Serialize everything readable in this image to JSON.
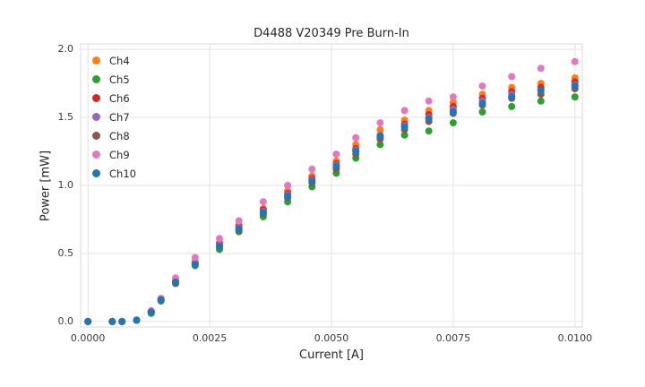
{
  "chart_data": {
    "type": "scatter",
    "title": "D4488 V20349 Pre Burn-In",
    "xlabel": "Current [A]",
    "ylabel": "Power [mW]",
    "xlim": [
      -0.00015,
      0.01015
    ],
    "ylim": [
      -0.04,
      2.04
    ],
    "grid": true,
    "legend_position": "upper-left",
    "xticks": {
      "values": [
        0.0,
        0.0025,
        0.005,
        0.0075,
        0.01
      ],
      "labels": [
        "0.0000",
        "0.0025",
        "0.0050",
        "0.0075",
        "0.0100"
      ]
    },
    "yticks": {
      "values": [
        0.0,
        0.5,
        1.0,
        1.5,
        2.0
      ],
      "labels": [
        "0.0",
        "0.5",
        "1.0",
        "1.5",
        "2.0"
      ]
    },
    "x": [
      0.0,
      0.0005,
      0.0007,
      0.001,
      0.0013,
      0.0015,
      0.0018,
      0.0022,
      0.0027,
      0.0031,
      0.0036,
      0.0041,
      0.0046,
      0.0051,
      0.0055,
      0.006,
      0.0065,
      0.007,
      0.0075,
      0.0081,
      0.0087,
      0.0093,
      0.01
    ],
    "series": [
      {
        "name": "Ch4",
        "color": "#ff7f0e",
        "values": [
          0.0,
          0.0,
          0.0,
          0.01,
          0.07,
          0.17,
          0.3,
          0.44,
          0.58,
          0.71,
          0.83,
          0.96,
          1.07,
          1.18,
          1.3,
          1.41,
          1.48,
          1.55,
          1.61,
          1.67,
          1.72,
          1.75,
          1.79
        ]
      },
      {
        "name": "Ch5",
        "color": "#2ca02c",
        "values": [
          0.0,
          0.0,
          0.0,
          0.01,
          0.06,
          0.15,
          0.28,
          0.41,
          0.53,
          0.66,
          0.77,
          0.88,
          0.99,
          1.09,
          1.2,
          1.3,
          1.37,
          1.4,
          1.46,
          1.54,
          1.58,
          1.62,
          1.65
        ]
      },
      {
        "name": "Ch6",
        "color": "#d62728",
        "values": [
          0.0,
          0.0,
          0.0,
          0.01,
          0.07,
          0.16,
          0.29,
          0.43,
          0.57,
          0.7,
          0.82,
          0.94,
          1.05,
          1.16,
          1.27,
          1.35,
          1.45,
          1.52,
          1.58,
          1.64,
          1.69,
          1.72,
          1.76
        ]
      },
      {
        "name": "Ch7",
        "color": "#9467bd",
        "values": [
          0.0,
          0.0,
          0.0,
          0.01,
          0.07,
          0.16,
          0.29,
          0.43,
          0.56,
          0.69,
          0.81,
          0.93,
          1.04,
          1.15,
          1.26,
          1.37,
          1.44,
          1.5,
          1.56,
          1.62,
          1.67,
          1.7,
          1.74
        ]
      },
      {
        "name": "Ch8",
        "color": "#8c564b",
        "values": [
          0.0,
          0.0,
          0.0,
          0.01,
          0.07,
          0.16,
          0.28,
          0.42,
          0.55,
          0.67,
          0.79,
          0.91,
          1.02,
          1.12,
          1.23,
          1.34,
          1.41,
          1.47,
          1.53,
          1.59,
          1.64,
          1.67,
          1.71
        ]
      },
      {
        "name": "Ch9",
        "color": "#e377c2",
        "values": [
          0.0,
          0.0,
          0.0,
          0.01,
          0.08,
          0.17,
          0.32,
          0.47,
          0.61,
          0.74,
          0.88,
          1.0,
          1.12,
          1.23,
          1.35,
          1.46,
          1.55,
          1.62,
          1.65,
          1.73,
          1.8,
          1.86,
          1.91
        ]
      },
      {
        "name": "Ch10",
        "color": "#1f77b4",
        "values": [
          0.0,
          0.0,
          0.0,
          0.01,
          0.07,
          0.16,
          0.29,
          0.42,
          0.55,
          0.68,
          0.8,
          0.92,
          1.03,
          1.14,
          1.25,
          1.36,
          1.43,
          1.49,
          1.54,
          1.6,
          1.65,
          1.7,
          1.73
        ]
      }
    ]
  }
}
